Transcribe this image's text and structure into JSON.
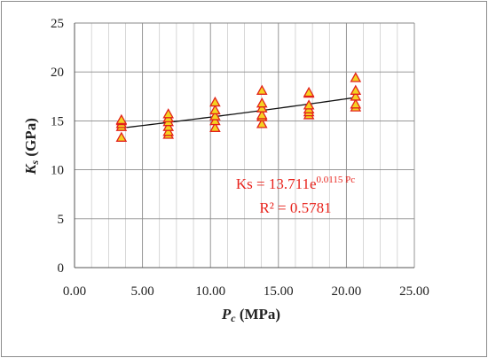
{
  "chart_data": {
    "type": "scatter",
    "title": "",
    "xlabel": {
      "main": "P",
      "sub": "c",
      "unit": " (MPa)"
    },
    "ylabel": {
      "main": "K",
      "sub": "s",
      "unit": " (GPa)"
    },
    "xlim": [
      0,
      25
    ],
    "ylim": [
      0,
      25
    ],
    "x_major_ticks": [
      0,
      5,
      10,
      15,
      20,
      25
    ],
    "x_tick_labels": [
      "0.00",
      "5.00",
      "10.00",
      "15.00",
      "20.00",
      "25.00"
    ],
    "y_major_ticks": [
      0,
      5,
      10,
      15,
      20,
      25
    ],
    "y_tick_labels": [
      "0",
      "5",
      "10",
      "15",
      "20",
      "25"
    ],
    "x_minor_step": 1.25,
    "grid": true,
    "legend": false,
    "marker": {
      "shape": "triangle",
      "fill": "#f4d222",
      "stroke": "#e2211a"
    },
    "series": [
      {
        "points": [
          [
            3.45,
            13.3
          ],
          [
            3.45,
            14.4
          ],
          [
            3.45,
            14.7
          ],
          [
            3.45,
            15.0
          ],
          [
            3.45,
            15.1
          ],
          [
            6.9,
            13.6
          ],
          [
            6.9,
            13.9
          ],
          [
            6.9,
            14.4
          ],
          [
            6.9,
            14.9
          ],
          [
            6.9,
            15.3
          ],
          [
            6.9,
            15.7
          ],
          [
            10.34,
            14.3
          ],
          [
            10.34,
            15.0
          ],
          [
            10.34,
            15.5
          ],
          [
            10.34,
            16.1
          ],
          [
            10.34,
            16.9
          ],
          [
            13.79,
            14.7
          ],
          [
            13.79,
            15.4
          ],
          [
            13.79,
            15.6
          ],
          [
            13.79,
            16.3
          ],
          [
            13.79,
            16.8
          ],
          [
            13.79,
            18.1
          ],
          [
            17.24,
            15.6
          ],
          [
            17.24,
            15.9
          ],
          [
            17.24,
            16.2
          ],
          [
            17.24,
            16.6
          ],
          [
            17.24,
            17.8
          ],
          [
            17.24,
            17.9
          ],
          [
            20.68,
            16.4
          ],
          [
            20.68,
            16.7
          ],
          [
            20.68,
            17.5
          ],
          [
            20.68,
            18.1
          ],
          [
            20.68,
            19.4
          ]
        ]
      }
    ],
    "trendline": {
      "type": "exponential",
      "coefficient": 13.711,
      "rate": 0.0115,
      "x_range": [
        3.45,
        20.68
      ],
      "color": "#111111"
    },
    "annotation": {
      "equation_prefix": "Ks = 13.711e",
      "equation_exponent": "0.0115 Pc",
      "r_squared": "R² = 0.5781",
      "color": "#e8231c"
    }
  }
}
